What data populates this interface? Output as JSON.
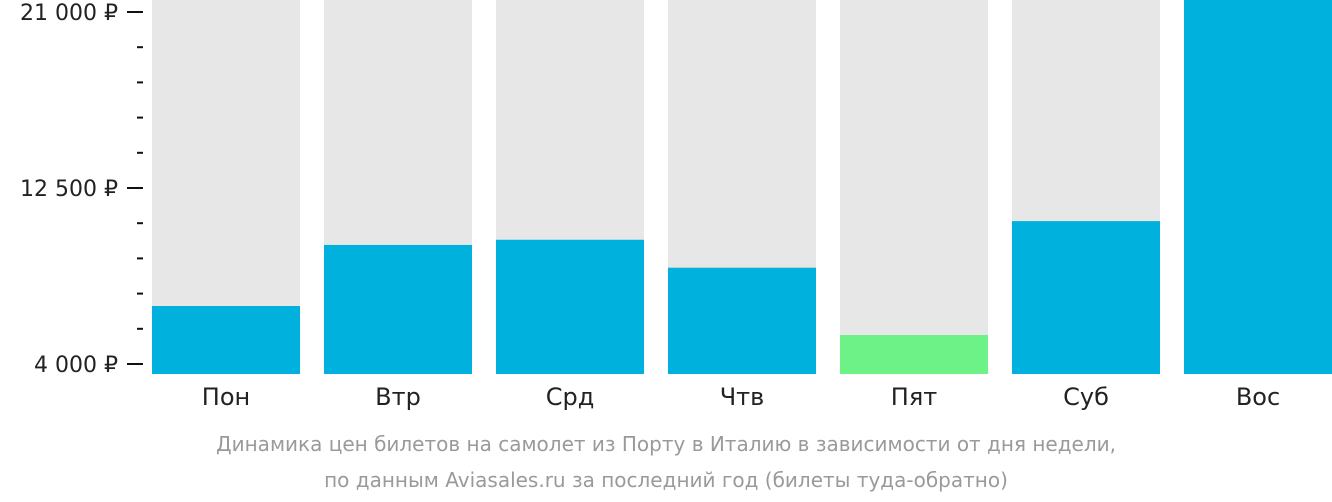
{
  "chart_data": {
    "type": "bar",
    "categories": [
      "Пон",
      "Втр",
      "Срд",
      "Чтв",
      "Пят",
      "Суб",
      "Вос"
    ],
    "values": [
      6800,
      9750,
      10000,
      8650,
      5400,
      10900,
      21600
    ],
    "highlight_index": 4,
    "ylim": [
      4000,
      21000
    ],
    "y_ticks": [
      {
        "value": 4000,
        "label": "4 000 ₽"
      },
      {
        "value": 12500,
        "label": "12 500 ₽"
      },
      {
        "value": 21000,
        "label": "21 000 ₽"
      }
    ],
    "y_minor_ticks": [
      5700,
      7400,
      9100,
      10800,
      14200,
      15900,
      17600,
      19300
    ],
    "colors": {
      "bar": "#00b0dd",
      "bar_highlight": "#6cf286",
      "bar_background": "#e7e7e7",
      "axis": "#111111",
      "tick_label": "#222222"
    }
  },
  "caption": {
    "line1": "Динамика цен билетов на самолет из Порту в Италию в зависимости от дня недели,",
    "line2": "по данным Aviasales.ru за последний год (билеты туда-обратно)"
  }
}
